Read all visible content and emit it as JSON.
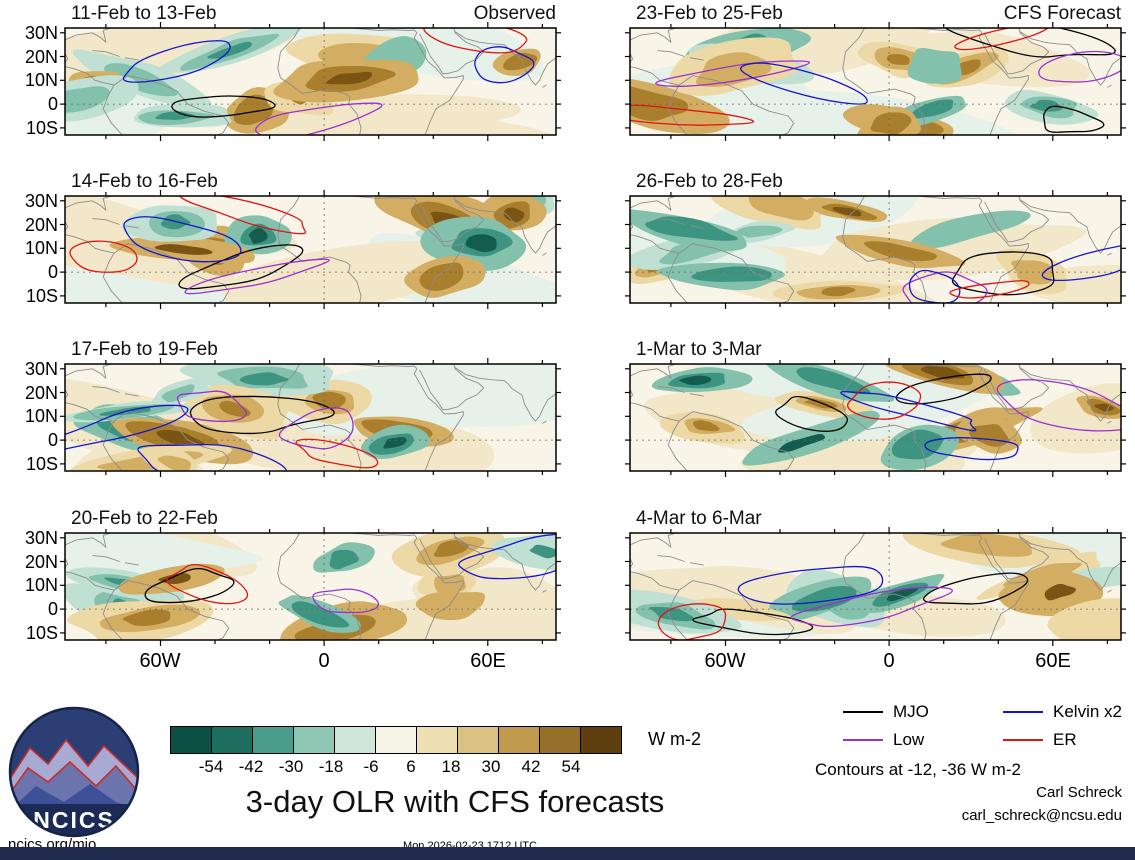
{
  "title": "3-day OLR with CFS forecasts",
  "columns": {
    "left": "Observed",
    "right": "CFS Forecast"
  },
  "panels": [
    {
      "title": "11-Feb to 13-Feb",
      "column": "Observed",
      "corner_label": "Observed"
    },
    {
      "title": "23-Feb to 25-Feb",
      "column": "CFS Forecast",
      "corner_label": "CFS Forecast"
    },
    {
      "title": "14-Feb to 16-Feb",
      "column": "Observed",
      "corner_label": ""
    },
    {
      "title": "26-Feb to 28-Feb",
      "column": "CFS Forecast",
      "corner_label": ""
    },
    {
      "title": "17-Feb to 19-Feb",
      "column": "Observed",
      "corner_label": ""
    },
    {
      "title": "1-Mar to 3-Mar",
      "column": "CFS Forecast",
      "corner_label": ""
    },
    {
      "title": "20-Feb to 22-Feb",
      "column": "Observed",
      "corner_label": ""
    },
    {
      "title": "4-Mar to 6-Mar",
      "column": "CFS Forecast",
      "corner_label": ""
    }
  ],
  "axes": {
    "lat_ticks": [
      "30N",
      "20N",
      "10N",
      "0",
      "10S"
    ],
    "lon_ticks": [
      "60W",
      "0",
      "60E"
    ]
  },
  "colorbar": {
    "units": "W m-2",
    "tick_labels": [
      "-54",
      "-42",
      "-30",
      "-18",
      "-6",
      "6",
      "18",
      "30",
      "42",
      "54"
    ],
    "colors": [
      "#0c4f44",
      "#1d6e5f",
      "#4a9d8a",
      "#8fc7b5",
      "#cfe7db",
      "#f7f4e8",
      "#efe0b4",
      "#dbc183",
      "#c09a4e",
      "#95702a",
      "#5f3f10"
    ]
  },
  "legend": {
    "items": [
      {
        "label": "MJO",
        "color": "#000000"
      },
      {
        "label": "Low",
        "color": "#9b30d0"
      },
      {
        "label": "Kelvin x2",
        "color": "#1515cc"
      },
      {
        "label": "ER",
        "color": "#e01414"
      }
    ]
  },
  "notes": {
    "contours": "Contours at -12, -36 W m-2",
    "credit_name": "Carl Schreck",
    "credit_email": "carl_schreck@ncsu.edu",
    "site": "ncics.org/mjo",
    "timestamp": "Mon 2026-02-23 1712 UTC"
  },
  "logo": {
    "text": "NCICS"
  },
  "chart_data": {
    "type": "heatmap",
    "title": "3-day OLR with CFS forecasts",
    "description": "Eight longitude-latitude map panels of 3-day mean OLR anomalies (shading, W m-2) over roughly 10S-30N with wave-filtered anomaly contours overlaid; left column is observed, right column is CFS forecast.",
    "columns": [
      "Observed",
      "CFS Forecast"
    ],
    "panels": [
      {
        "column": "Observed",
        "period": "11-Feb to 13-Feb"
      },
      {
        "column": "Observed",
        "period": "14-Feb to 16-Feb"
      },
      {
        "column": "Observed",
        "period": "17-Feb to 19-Feb"
      },
      {
        "column": "Observed",
        "period": "20-Feb to 22-Feb"
      },
      {
        "column": "CFS Forecast",
        "period": "23-Feb to 25-Feb"
      },
      {
        "column": "CFS Forecast",
        "period": "26-Feb to 28-Feb"
      },
      {
        "column": "CFS Forecast",
        "period": "1-Mar to 3-Mar"
      },
      {
        "column": "CFS Forecast",
        "period": "4-Mar to 6-Mar"
      }
    ],
    "colorbar_boundaries": [
      -54,
      -42,
      -30,
      -18,
      -6,
      6,
      18,
      30,
      42,
      54
    ],
    "units": "W m-2",
    "contour_levels": [
      -12,
      -36
    ],
    "wave_overlays": [
      {
        "name": "MJO",
        "color": "#000000"
      },
      {
        "name": "Low",
        "color": "#9b30d0"
      },
      {
        "name": "Kelvin x2",
        "color": "#1515cc"
      },
      {
        "name": "ER",
        "color": "#e01414"
      }
    ],
    "y_tick_labels": [
      "30N",
      "20N",
      "10N",
      "0",
      "10S"
    ],
    "x_tick_labels": [
      "60W",
      "0",
      "60E"
    ],
    "legend_position": "bottom-right",
    "grid": false
  }
}
